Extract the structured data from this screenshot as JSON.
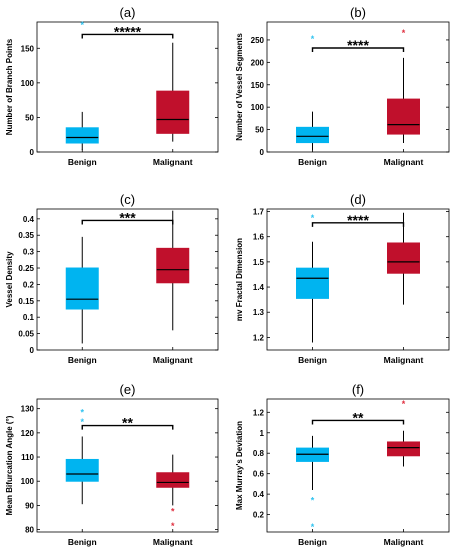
{
  "figure": {
    "colors": {
      "benign": "#00B4F0",
      "malignant": "#C0102C",
      "median": "#000000",
      "outlier_benign": "#33C4F0",
      "outlier_malignant": "#E03040"
    },
    "panels": [
      {
        "id": "a",
        "title": "(a)",
        "ylabel": "Number of Branch Points",
        "yticks": [
          0,
          50,
          100,
          150
        ],
        "ylim": [
          0,
          188
        ],
        "categories": [
          "Benign",
          "Malignant"
        ],
        "boxes": [
          {
            "group": "Benign",
            "min": 3,
            "q1": 13,
            "median": 21,
            "q3": 35,
            "max": 58,
            "outliers": [
              184
            ]
          },
          {
            "group": "Malignant",
            "min": 15,
            "q1": 27,
            "median": 47,
            "q3": 88,
            "max": 158,
            "outliers": []
          }
        ],
        "significance": {
          "stars": "*****",
          "y": 170
        }
      },
      {
        "id": "b",
        "title": "(b)",
        "ylabel": "Number of Vessel Segments",
        "yticks": [
          0,
          50,
          100,
          150,
          200,
          250
        ],
        "ylim": [
          0,
          290
        ],
        "categories": [
          "Benign",
          "Malignant"
        ],
        "boxes": [
          {
            "group": "Benign",
            "min": 4,
            "q1": 21,
            "median": 35,
            "q3": 55,
            "max": 90,
            "outliers": [
              252
            ]
          },
          {
            "group": "Malignant",
            "min": 20,
            "q1": 40,
            "median": 61,
            "q3": 118,
            "max": 210,
            "outliers": [
              266
            ]
          }
        ],
        "significance": {
          "stars": "****",
          "y": 232
        }
      },
      {
        "id": "c",
        "title": "(c)",
        "ylabel": "Vessel Density",
        "yticks": [
          0,
          0.05,
          0.1,
          0.15,
          0.2,
          0.25,
          0.3,
          0.35,
          0.4
        ],
        "ylim": [
          0,
          0.43
        ],
        "categories": [
          "Benign",
          "Malignant"
        ],
        "boxes": [
          {
            "group": "Benign",
            "min": 0.02,
            "q1": 0.125,
            "median": 0.155,
            "q3": 0.25,
            "max": 0.345,
            "outliers": []
          },
          {
            "group": "Malignant",
            "min": 0.06,
            "q1": 0.205,
            "median": 0.245,
            "q3": 0.31,
            "max": 0.425,
            "outliers": []
          }
        ],
        "significance": {
          "stars": "***",
          "y": 0.395
        }
      },
      {
        "id": "d",
        "title": "(d)",
        "ylabel": "mv Fractal Dimension",
        "yticks": [
          1.2,
          1.3,
          1.4,
          1.5,
          1.6,
          1.7
        ],
        "ylim": [
          1.15,
          1.71
        ],
        "categories": [
          "Benign",
          "Malignant"
        ],
        "boxes": [
          {
            "group": "Benign",
            "min": 1.18,
            "q1": 1.355,
            "median": 1.435,
            "q3": 1.475,
            "max": 1.58,
            "outliers": [
              1.675
            ]
          },
          {
            "group": "Malignant",
            "min": 1.33,
            "q1": 1.455,
            "median": 1.5,
            "q3": 1.575,
            "max": 1.695,
            "outliers": []
          }
        ],
        "significance": {
          "stars": "****",
          "y": 1.655
        }
      },
      {
        "id": "e",
        "title": "(e)",
        "ylabel": "Mean Bifurcation Angle (°)",
        "yticks": [
          80,
          90,
          100,
          110,
          120,
          130
        ],
        "ylim": [
          79,
          134
        ],
        "categories": [
          "Benign",
          "Malignant"
        ],
        "boxes": [
          {
            "group": "Benign",
            "min": 90.5,
            "q1": 100,
            "median": 103,
            "q3": 109,
            "max": 118.5,
            "outliers": [
              124.5,
              128.5
            ]
          },
          {
            "group": "Malignant",
            "min": 90,
            "q1": 97.5,
            "median": 99.5,
            "q3": 103.5,
            "max": 111,
            "outliers": [
              87.5,
              81.5
            ]
          }
        ],
        "significance": {
          "stars": "**",
          "y": 123
        }
      },
      {
        "id": "f",
        "title": "(f)",
        "ylabel": "Max Murray's Deviation",
        "yticks": [
          0.2,
          0.4,
          0.6,
          0.8,
          1,
          1.2
        ],
        "ylim": [
          0.03,
          1.33
        ],
        "categories": [
          "Benign",
          "Malignant"
        ],
        "boxes": [
          {
            "group": "Benign",
            "min": 0.44,
            "q1": 0.72,
            "median": 0.79,
            "q3": 0.85,
            "max": 0.97,
            "outliers": [
              0.34,
              0.08
            ]
          },
          {
            "group": "Malignant",
            "min": 0.67,
            "q1": 0.775,
            "median": 0.855,
            "q3": 0.91,
            "max": 1.02,
            "outliers": [
              1.28
            ]
          }
        ],
        "significance": {
          "stars": "**",
          "y": 1.12
        }
      }
    ]
  },
  "chart_data": [
    {
      "type": "box",
      "title": "(a)",
      "ylabel": "Number of Branch Points",
      "categories": [
        "Benign",
        "Malignant"
      ],
      "ylim": [
        0,
        188
      ],
      "series": [
        {
          "name": "Benign",
          "min": 3,
          "q1": 13,
          "median": 21,
          "q3": 35,
          "max": 58,
          "outliers": [
            184
          ]
        },
        {
          "name": "Malignant",
          "min": 15,
          "q1": 27,
          "median": 47,
          "q3": 88,
          "max": 158,
          "outliers": []
        }
      ],
      "annotation": "*****"
    },
    {
      "type": "box",
      "title": "(b)",
      "ylabel": "Number of Vessel Segments",
      "categories": [
        "Benign",
        "Malignant"
      ],
      "ylim": [
        0,
        290
      ],
      "series": [
        {
          "name": "Benign",
          "min": 4,
          "q1": 21,
          "median": 35,
          "q3": 55,
          "max": 90,
          "outliers": [
            252
          ]
        },
        {
          "name": "Malignant",
          "min": 20,
          "q1": 40,
          "median": 61,
          "q3": 118,
          "max": 210,
          "outliers": [
            266
          ]
        }
      ],
      "annotation": "****"
    },
    {
      "type": "box",
      "title": "(c)",
      "ylabel": "Vessel Density",
      "categories": [
        "Benign",
        "Malignant"
      ],
      "ylim": [
        0,
        0.43
      ],
      "series": [
        {
          "name": "Benign",
          "min": 0.02,
          "q1": 0.125,
          "median": 0.155,
          "q3": 0.25,
          "max": 0.345,
          "outliers": []
        },
        {
          "name": "Malignant",
          "min": 0.06,
          "q1": 0.205,
          "median": 0.245,
          "q3": 0.31,
          "max": 0.425,
          "outliers": []
        }
      ],
      "annotation": "***"
    },
    {
      "type": "box",
      "title": "(d)",
      "ylabel": "mv Fractal Dimension",
      "categories": [
        "Benign",
        "Malignant"
      ],
      "ylim": [
        1.15,
        1.71
      ],
      "series": [
        {
          "name": "Benign",
          "min": 1.18,
          "q1": 1.355,
          "median": 1.435,
          "q3": 1.475,
          "max": 1.58,
          "outliers": [
            1.675
          ]
        },
        {
          "name": "Malignant",
          "min": 1.33,
          "q1": 1.455,
          "median": 1.5,
          "q3": 1.575,
          "max": 1.695,
          "outliers": []
        }
      ],
      "annotation": "****"
    },
    {
      "type": "box",
      "title": "(e)",
      "ylabel": "Mean Bifurcation Angle (°)",
      "categories": [
        "Benign",
        "Malignant"
      ],
      "ylim": [
        79,
        134
      ],
      "series": [
        {
          "name": "Benign",
          "min": 90.5,
          "q1": 100,
          "median": 103,
          "q3": 109,
          "max": 118.5,
          "outliers": [
            124.5,
            128.5
          ]
        },
        {
          "name": "Malignant",
          "min": 90,
          "q1": 97.5,
          "median": 99.5,
          "q3": 103.5,
          "max": 111,
          "outliers": [
            87.5,
            81.5
          ]
        }
      ],
      "annotation": "**"
    },
    {
      "type": "box",
      "title": "(f)",
      "ylabel": "Max Murray's Deviation",
      "categories": [
        "Benign",
        "Malignant"
      ],
      "ylim": [
        0.03,
        1.33
      ],
      "series": [
        {
          "name": "Benign",
          "min": 0.44,
          "q1": 0.72,
          "median": 0.79,
          "q3": 0.85,
          "max": 0.97,
          "outliers": [
            0.34,
            0.08
          ]
        },
        {
          "name": "Malignant",
          "min": 0.67,
          "q1": 0.775,
          "median": 0.855,
          "q3": 0.91,
          "max": 1.02,
          "outliers": [
            1.28
          ]
        }
      ],
      "annotation": "**"
    }
  ]
}
